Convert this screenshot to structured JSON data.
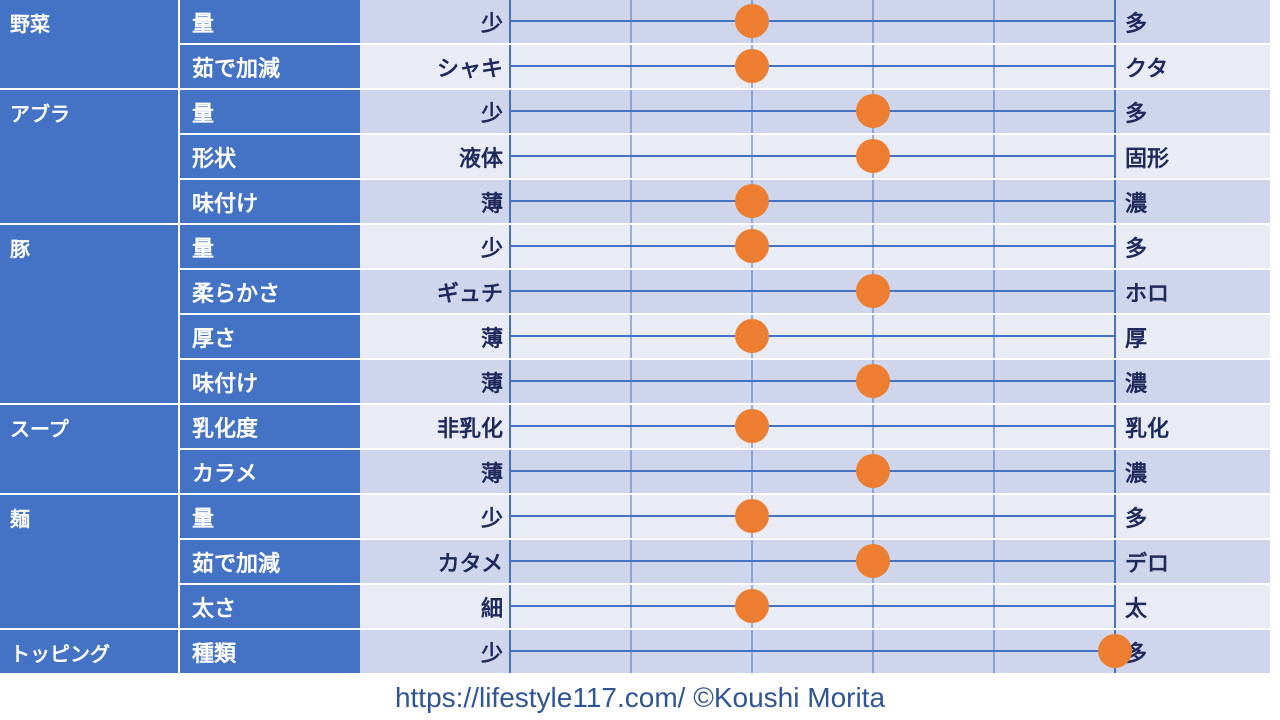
{
  "colors": {
    "category_bg": "#4472c4",
    "row_odd": "#cfd5ea",
    "row_even": "#e9ebf5",
    "line": "#4472c4",
    "marker": "#ed7d31",
    "label_text": "#1f2a5c",
    "footer_text": "#2f5597"
  },
  "chart_data": {
    "type": "scatter",
    "scale_steps": 6,
    "rows": [
      {
        "category": "野菜",
        "item": "量",
        "left": "少",
        "right": "多",
        "value": 2
      },
      {
        "category": "",
        "item": "茹で加減",
        "left": "シャキ",
        "right": "クタ",
        "value": 2
      },
      {
        "category": "アブラ",
        "item": "量",
        "left": "少",
        "right": "多",
        "value": 3
      },
      {
        "category": "",
        "item": "形状",
        "left": "液体",
        "right": "固形",
        "value": 3
      },
      {
        "category": "",
        "item": "味付け",
        "left": "薄",
        "right": "濃",
        "value": 2
      },
      {
        "category": "豚",
        "item": "量",
        "left": "少",
        "right": "多",
        "value": 2
      },
      {
        "category": "",
        "item": "柔らかさ",
        "left": "ギュチ",
        "right": "ホロ",
        "value": 3
      },
      {
        "category": "",
        "item": "厚さ",
        "left": "薄",
        "right": "厚",
        "value": 2
      },
      {
        "category": "",
        "item": "味付け",
        "left": "薄",
        "right": "濃",
        "value": 3
      },
      {
        "category": "スープ",
        "item": "乳化度",
        "left": "非乳化",
        "right": "乳化",
        "value": 2
      },
      {
        "category": "",
        "item": "カラメ",
        "left": "薄",
        "right": "濃",
        "value": 3
      },
      {
        "category": "麺",
        "item": "量",
        "left": "少",
        "right": "多",
        "value": 2
      },
      {
        "category": "",
        "item": "茹で加減",
        "left": "カタメ",
        "right": "デロ",
        "value": 3
      },
      {
        "category": "",
        "item": "太さ",
        "left": "細",
        "right": "太",
        "value": 2
      },
      {
        "category": "トッピング",
        "item": "種類",
        "left": "少",
        "right": "多",
        "value": 5
      }
    ]
  },
  "footer": {
    "text": "https://lifestyle117.com/  ©Koushi Morita"
  }
}
